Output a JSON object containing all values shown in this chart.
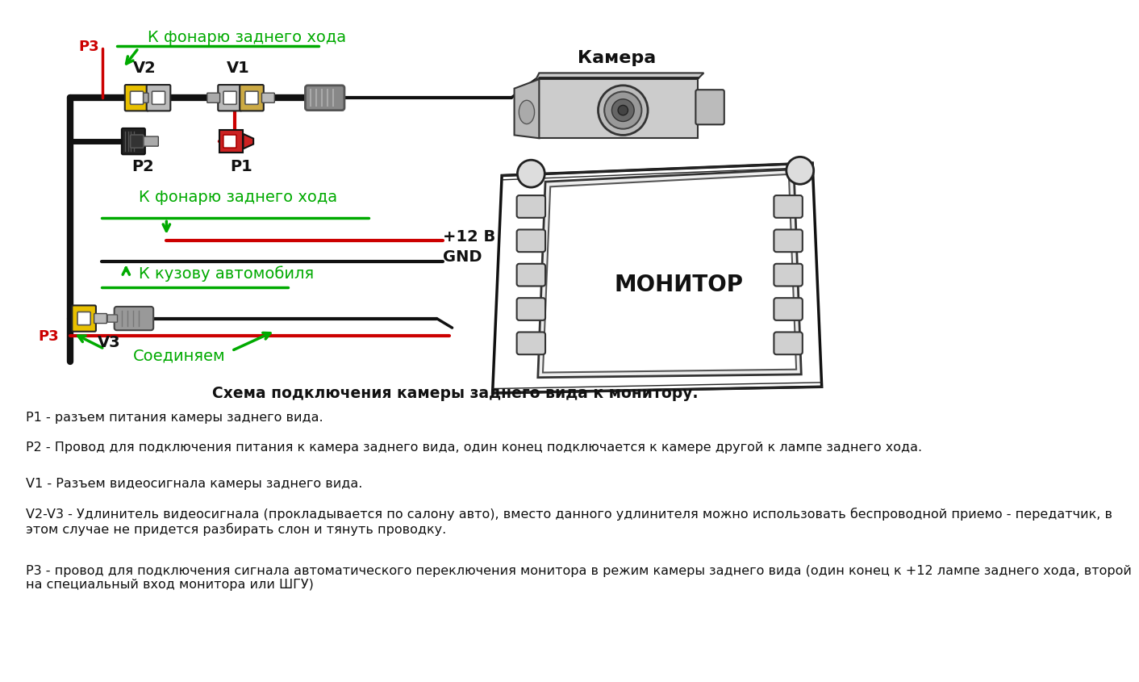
{
  "bg_color": "#ffffff",
  "label_k_fonarju": "К фонарю заднего хода",
  "label_k_kuzovu": "К кузову автомобиля",
  "label_soedinjaem": "Соединяем",
  "label_k_fonarju2": "К фонарю заднего хода",
  "label_camera": "Камера",
  "label_monitor": "МОНИТОР",
  "label_plus12": "+12 В",
  "label_gnd": "GND",
  "label_p1": "P1",
  "label_p2": "P2",
  "label_p3_red1": "P3",
  "label_p3_red2": "P3",
  "label_v1": "V1",
  "label_v2": "V2",
  "label_v3": "V3",
  "desc_title": "Схема подключения камеры заднего вида к монитору.",
  "desc_p1": "P1 - разъем питания камеры заднего вида.",
  "desc_p2": "P2 - Провод для подключения питания к камера заднего вида, один конец подключается к камере другой к лампе заднего хода.",
  "desc_v1": "V1 - Разъем видеосигнала камеры заднего вида.",
  "desc_v2v3": "V2-V3 - Удлинитель видеосигнала (прокладывается по салону авто), вместо данного удлинителя можно использовать беспроводной приемо - передатчик, в\nэтом случае не придется разбирать слон и тянуть проводку.",
  "desc_p3": "P3 - провод для подключения сигнала автоматического переключения монитора в режим камеры заднего вида (один конец к +12 лампе заднего хода, второй\nна специальный вход монитора или ШГУ)",
  "green_color": "#00aa00",
  "red_color": "#cc0000",
  "black_color": "#111111",
  "yellow_color": "#e8c000",
  "gray_color": "#888888",
  "light_gray": "#cccccc",
  "dark_gray": "#555555"
}
